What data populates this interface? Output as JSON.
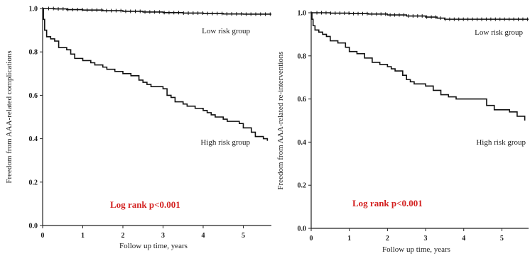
{
  "chart_data": [
    {
      "type": "line",
      "subtype": "kaplan-meier step",
      "title": "",
      "xlabel": "Follow up time, years",
      "ylabel": "Freedom from AAA-related complications",
      "xlim": [
        0,
        5.7
      ],
      "ylim": [
        0,
        1.0
      ],
      "x_ticks": [
        "0",
        "1",
        "2",
        "3",
        "4",
        "5"
      ],
      "y_ticks": [
        "0.0",
        "0.2",
        "0.4",
        "0.6",
        "0.8",
        "1.0"
      ],
      "grid": false,
      "annotation": "Log rank p<0.001",
      "annotation_color": "#d3201f",
      "series": [
        {
          "name": "Low risk group",
          "censor_marks": true,
          "x": [
            0,
            0.3,
            0.6,
            1.0,
            1.5,
            2.0,
            2.5,
            3.0,
            3.5,
            4.0,
            4.5,
            5.0,
            5.7
          ],
          "y": [
            1.0,
            0.998,
            0.995,
            0.993,
            0.99,
            0.987,
            0.984,
            0.981,
            0.979,
            0.977,
            0.975,
            0.974,
            0.974
          ]
        },
        {
          "name": "High risk group",
          "censor_marks": false,
          "x": [
            0,
            0.02,
            0.05,
            0.1,
            0.2,
            0.3,
            0.4,
            0.6,
            0.7,
            0.8,
            1.0,
            1.2,
            1.3,
            1.5,
            1.6,
            1.8,
            2.0,
            2.2,
            2.4,
            2.5,
            2.6,
            2.7,
            3.0,
            3.1,
            3.2,
            3.3,
            3.5,
            3.6,
            3.8,
            4.0,
            4.1,
            4.2,
            4.3,
            4.5,
            4.6,
            4.9,
            5.0,
            5.2,
            5.3,
            5.5,
            5.6
          ],
          "y": [
            1.0,
            0.95,
            0.9,
            0.87,
            0.86,
            0.85,
            0.82,
            0.81,
            0.79,
            0.77,
            0.76,
            0.75,
            0.74,
            0.73,
            0.72,
            0.71,
            0.7,
            0.69,
            0.67,
            0.66,
            0.65,
            0.64,
            0.63,
            0.6,
            0.59,
            0.57,
            0.56,
            0.55,
            0.54,
            0.53,
            0.52,
            0.51,
            0.5,
            0.49,
            0.48,
            0.47,
            0.45,
            0.43,
            0.41,
            0.4,
            0.39
          ]
        }
      ]
    },
    {
      "type": "line",
      "subtype": "kaplan-meier step",
      "title": "",
      "xlabel": "Follow up time, years",
      "ylabel": "Freedom from AAA-related re-interventions",
      "xlim": [
        0,
        5.7
      ],
      "ylim": [
        0,
        1.0
      ],
      "x_ticks": [
        "0",
        "1",
        "2",
        "3",
        "4",
        "5"
      ],
      "y_ticks": [
        "0.0",
        "0.2",
        "0.4",
        "0.6",
        "0.8",
        "1.0"
      ],
      "grid": false,
      "annotation": "Log rank p<0.001",
      "annotation_color": "#d3201f",
      "series": [
        {
          "name": "Low risk group",
          "censor_marks": true,
          "x": [
            0,
            0.5,
            1.0,
            1.5,
            2.0,
            2.5,
            3.0,
            3.3,
            3.5,
            4.0,
            4.5,
            5.0,
            5.7
          ],
          "y": [
            1.0,
            0.998,
            0.996,
            0.994,
            0.99,
            0.985,
            0.98,
            0.975,
            0.97,
            0.97,
            0.97,
            0.97,
            0.97
          ]
        },
        {
          "name": "High risk group",
          "censor_marks": false,
          "x": [
            0,
            0.02,
            0.05,
            0.1,
            0.2,
            0.3,
            0.4,
            0.5,
            0.7,
            0.9,
            1.0,
            1.2,
            1.4,
            1.6,
            1.8,
            2.0,
            2.1,
            2.2,
            2.4,
            2.5,
            2.6,
            2.7,
            3.0,
            3.2,
            3.4,
            3.6,
            3.8,
            4.2,
            4.6,
            4.8,
            5.2,
            5.4,
            5.6
          ],
          "y": [
            1.0,
            0.97,
            0.94,
            0.92,
            0.91,
            0.9,
            0.89,
            0.87,
            0.86,
            0.84,
            0.82,
            0.81,
            0.79,
            0.77,
            0.76,
            0.75,
            0.74,
            0.73,
            0.71,
            0.69,
            0.68,
            0.67,
            0.66,
            0.64,
            0.62,
            0.61,
            0.6,
            0.6,
            0.57,
            0.55,
            0.54,
            0.52,
            0.5
          ]
        }
      ]
    }
  ]
}
